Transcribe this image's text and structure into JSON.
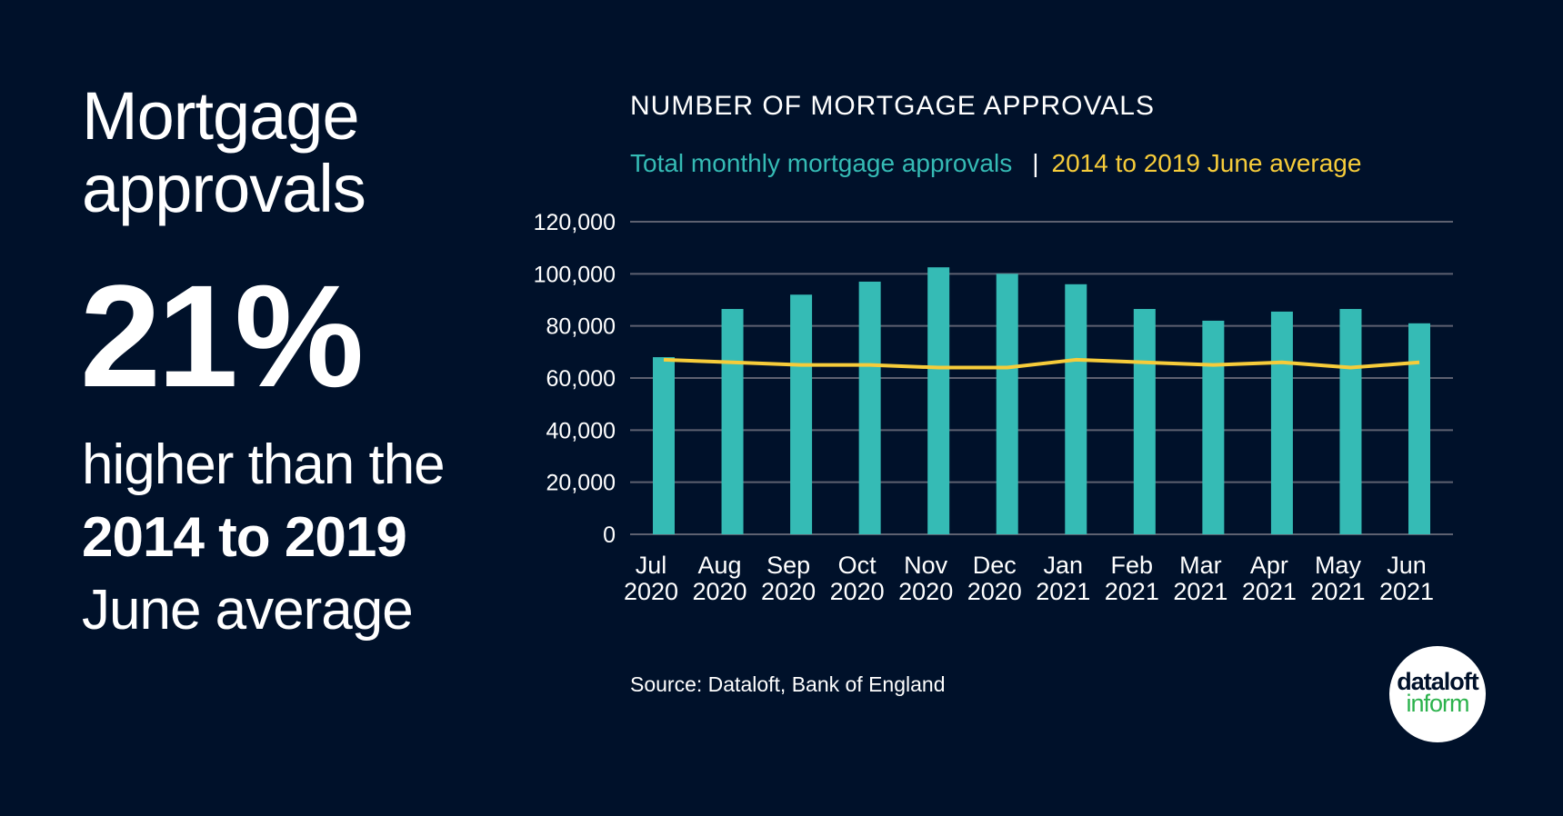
{
  "headline": {
    "line1": "Mortgage",
    "line2": "approvals"
  },
  "stat": "21%",
  "subtext": {
    "line1": "higher than the",
    "line2_bold": "2014 to 2019",
    "line3": "June average"
  },
  "source": "Source: Dataloft, Bank of England",
  "logo": {
    "line1": "dataloft",
    "line2": "inform"
  },
  "colors": {
    "background": "#00112a",
    "bars": "#35bbb5",
    "line": "#f6cc3a",
    "grid": "#5d6170",
    "logo_green": "#2bb24c"
  },
  "chart_data": {
    "type": "bar",
    "title": "NUMBER OF MORTGAGE APPROVALS",
    "categories": [
      [
        "Jul",
        "2020"
      ],
      [
        "Aug",
        "2020"
      ],
      [
        "Sep",
        "2020"
      ],
      [
        "Oct",
        "2020"
      ],
      [
        "Nov",
        "2020"
      ],
      [
        "Dec",
        "2020"
      ],
      [
        "Jan",
        "2021"
      ],
      [
        "Feb",
        "2021"
      ],
      [
        "Mar",
        "2021"
      ],
      [
        "Apr",
        "2021"
      ],
      [
        "May",
        "2021"
      ],
      [
        "Jun",
        "2021"
      ]
    ],
    "series": [
      {
        "name": "Total monthly mortgage approvals",
        "type": "bar",
        "color": "#35bbb5",
        "values": [
          68000,
          86500,
          92000,
          97000,
          102500,
          100000,
          96000,
          86500,
          82000,
          85500,
          86500,
          81000
        ]
      },
      {
        "name": "2014 to 2019 June average",
        "type": "line",
        "color": "#f6cc3a",
        "values": [
          67000,
          66000,
          65000,
          65000,
          64000,
          64000,
          67000,
          66000,
          65000,
          66000,
          64000,
          66000
        ]
      }
    ],
    "yticks": [
      "0",
      "20,000",
      "40,000",
      "60,000",
      "80,000",
      "100,000",
      "120,000"
    ],
    "ylim": [
      0,
      120000
    ],
    "grid": true,
    "legend": "top",
    "legend_separator": "|"
  }
}
